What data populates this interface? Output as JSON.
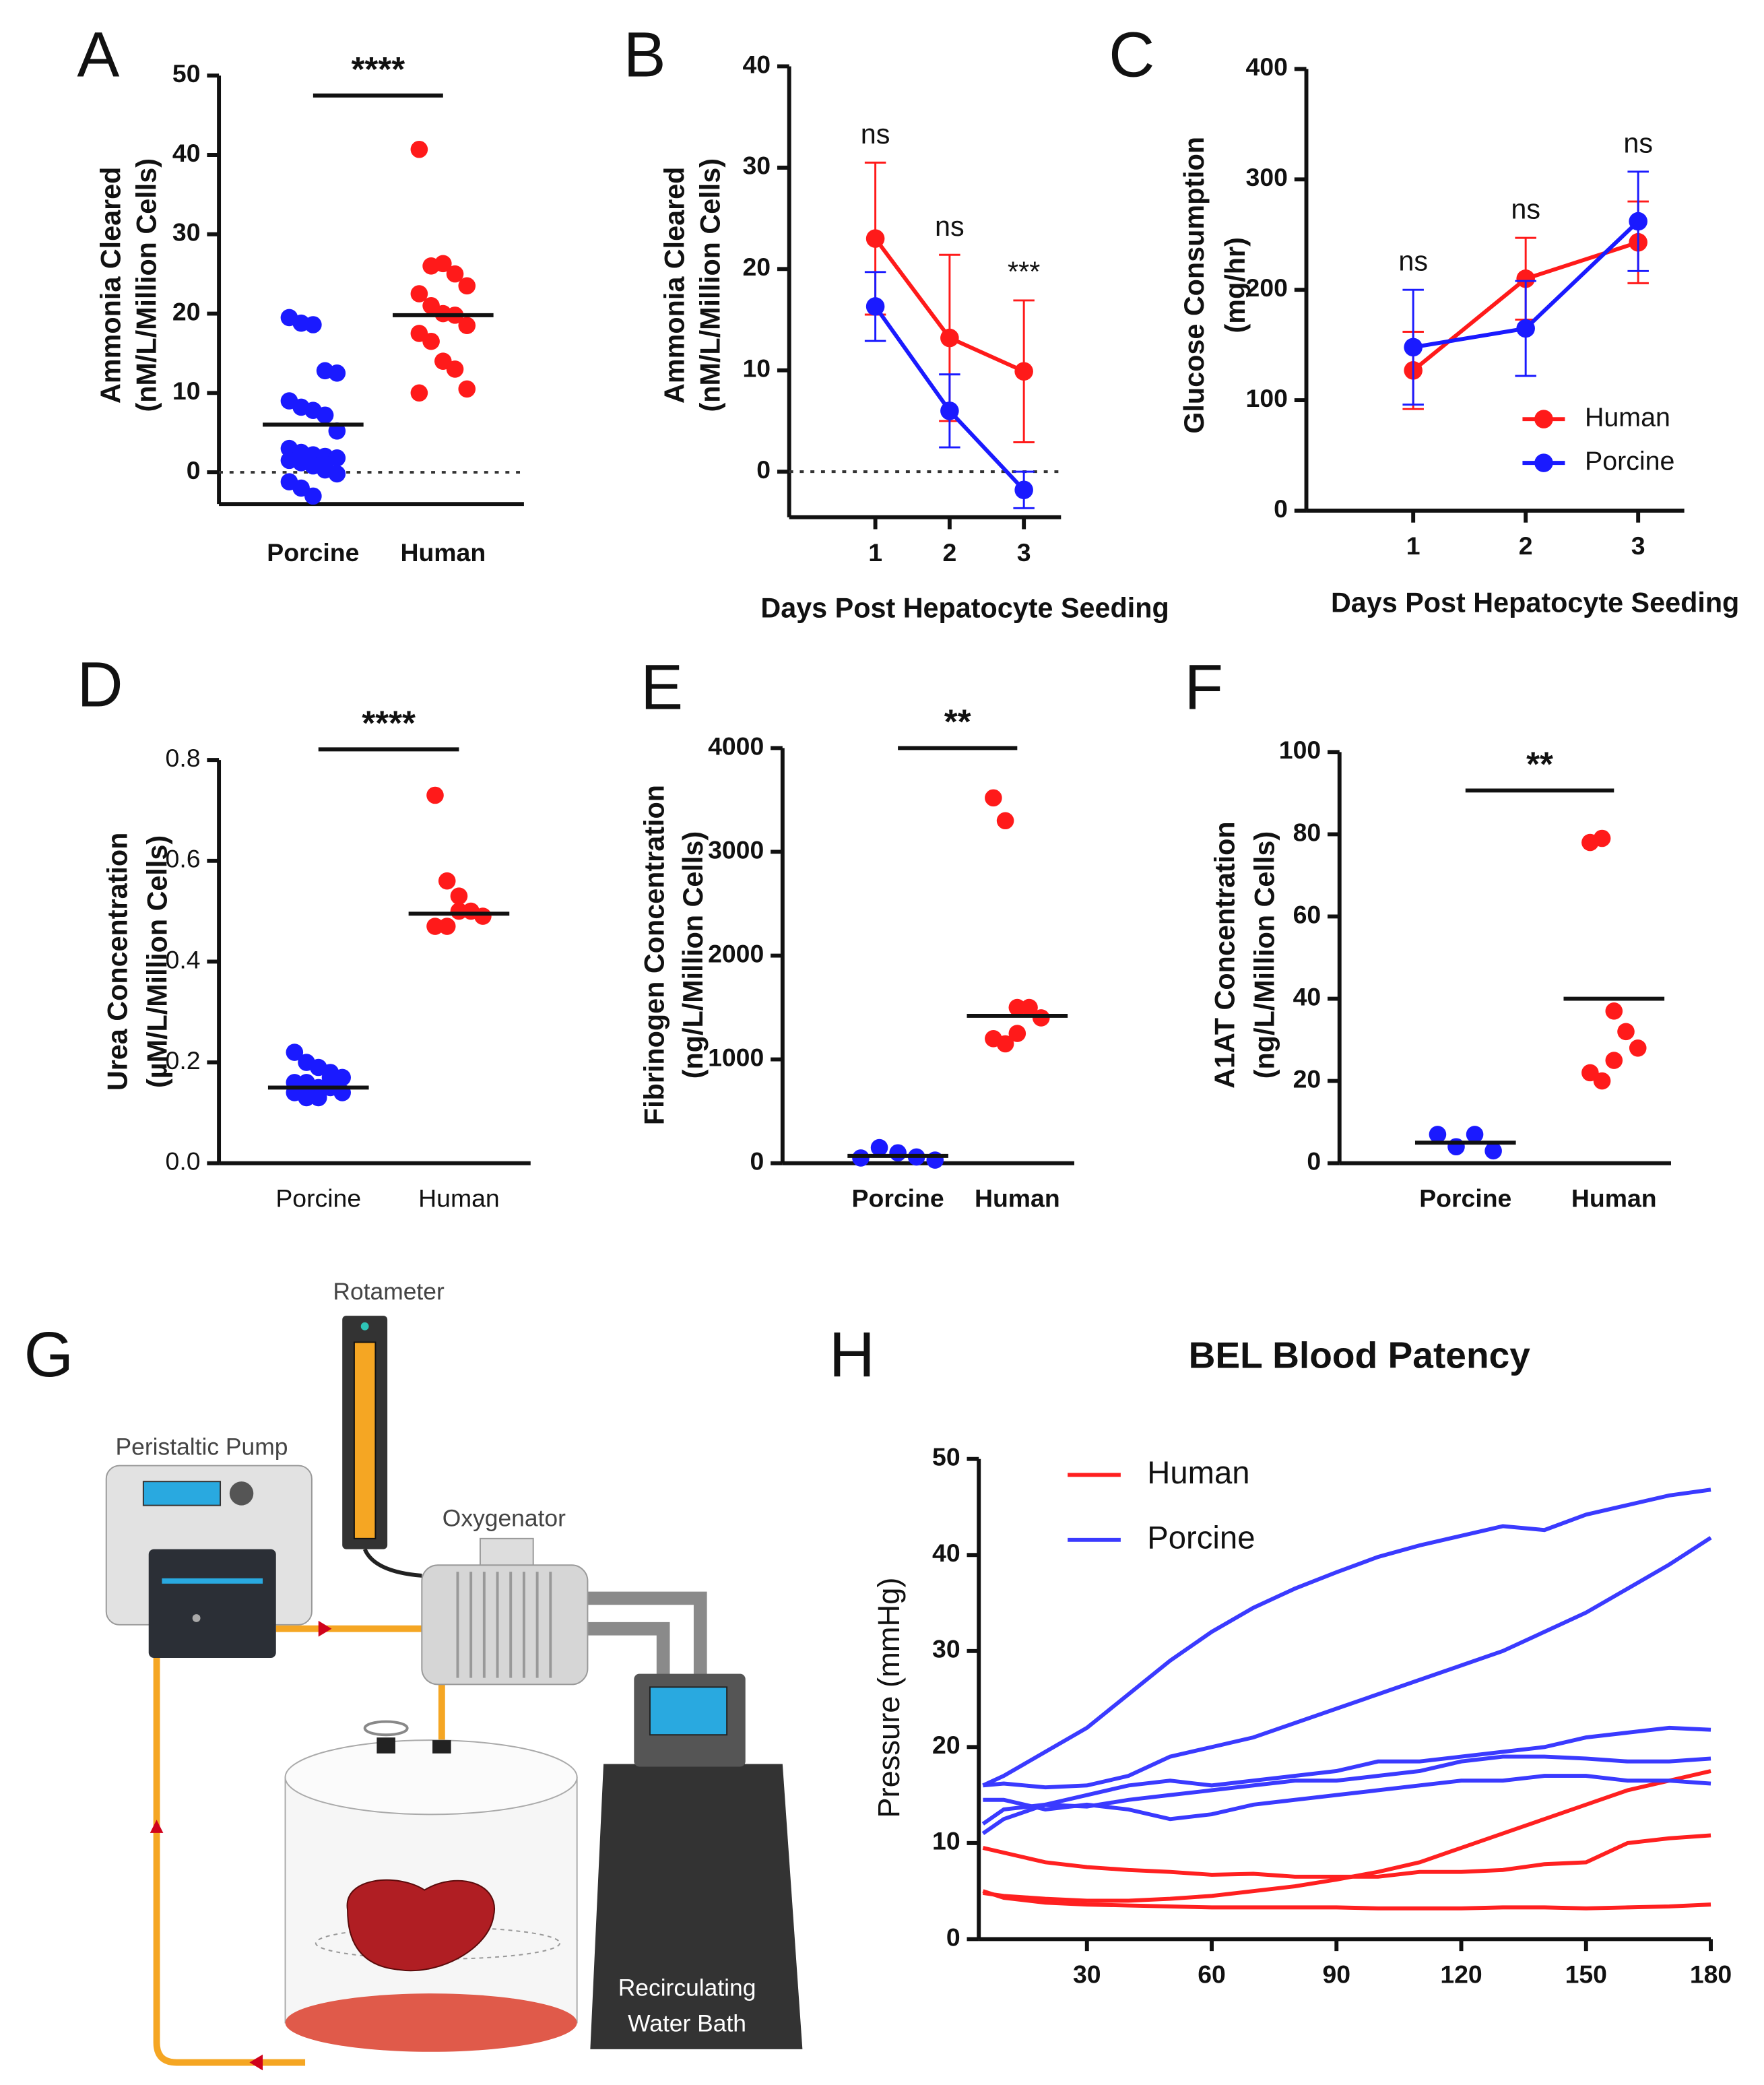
{
  "chart_data": [
    {
      "panel": "A",
      "type": "strip",
      "ylabel": [
        "Ammonia Cleared",
        "(nM/L/Million Cells)"
      ],
      "categories": [
        "Porcine",
        "Human"
      ],
      "groups": [
        {
          "color": "#1a1aff",
          "values": [
            19.5,
            18.8,
            18.6,
            12.8,
            12.5,
            9,
            8.2,
            7.8,
            7.2,
            5.2,
            3,
            2.5,
            2.2,
            2,
            1.8,
            1.5,
            1.2,
            0.8,
            0.3,
            -0.2,
            -1.2,
            -2,
            -3,
            1
          ],
          "mean": 6
        },
        {
          "color": "#ff1a1a",
          "values": [
            40.7,
            26,
            26.3,
            25,
            23.5,
            22.5,
            21,
            20,
            19.8,
            18.5,
            17.5,
            16.5,
            14,
            13,
            10.5,
            10
          ],
          "mean": 19.8
        }
      ],
      "ylim": [
        -4,
        50
      ],
      "yticks": [
        0,
        10,
        20,
        30,
        40,
        50
      ],
      "refline": 0,
      "significance": "****"
    },
    {
      "panel": "B",
      "type": "line",
      "ylabel": [
        "Ammonia Cleared",
        "(nM/L/Million Cells)"
      ],
      "xlabel": "Days Post Hepatocyte Seeding",
      "x": [
        1,
        2,
        3
      ],
      "xlim": [
        -0.16,
        3.5
      ],
      "xticks": [
        1,
        2,
        3
      ],
      "ylim": [
        -4.5,
        40
      ],
      "yticks": [
        0,
        10,
        20,
        30,
        40
      ],
      "refline": 0,
      "series": [
        {
          "color": "#ff1a1a",
          "values": [
            23,
            13.2,
            9.9
          ],
          "errors": [
            7.5,
            8.2,
            7
          ]
        },
        {
          "color": "#1a1aff",
          "values": [
            16.3,
            6,
            -1.8
          ],
          "errors": [
            3.4,
            3.6,
            1.8
          ]
        }
      ],
      "annotations": [
        "ns",
        "ns",
        "***"
      ]
    },
    {
      "panel": "C",
      "type": "line",
      "ylabel": [
        "Glucose Consumption",
        "(mg/hr)"
      ],
      "xlabel": "Days Post Hepatocyte Seeding",
      "x": [
        1,
        2,
        3
      ],
      "xlim": [
        0.05,
        3.41
      ],
      "xticks": [
        1,
        2,
        3
      ],
      "ylim": [
        0,
        400
      ],
      "yticks": [
        0,
        100,
        200,
        300,
        400
      ],
      "series": [
        {
          "name": "Human",
          "color": "#ff1a1a",
          "values": [
            127,
            210,
            243
          ],
          "errors": [
            35,
            37,
            37
          ]
        },
        {
          "name": "Porcine",
          "color": "#1a1aff",
          "values": [
            148,
            165,
            262
          ],
          "errors": [
            52,
            43,
            45
          ]
        }
      ],
      "legend": "lower right",
      "annotations": [
        "ns",
        "ns",
        "ns"
      ]
    },
    {
      "panel": "D",
      "type": "strip",
      "ylabel": [
        "Urea Concentration",
        "(µM/L/Million Cells)"
      ],
      "categories": [
        "Porcine",
        "Human"
      ],
      "groups": [
        {
          "color": "#1a1aff",
          "values": [
            0.22,
            0.2,
            0.19,
            0.18,
            0.17,
            0.16,
            0.16,
            0.15,
            0.15,
            0.14,
            0.14,
            0.13,
            0.13,
            0.17
          ],
          "mean": 0.15
        },
        {
          "color": "#ff1a1a",
          "values": [
            0.73,
            0.56,
            0.53,
            0.5,
            0.49,
            0.47,
            0.47,
            0.5
          ],
          "mean": 0.495
        }
      ],
      "ylim": [
        0,
        0.8
      ],
      "yticks": [
        {
          "value": 0,
          "label": "0.0"
        },
        0.2,
        0.4,
        0.6,
        0.8
      ],
      "significance": "****"
    },
    {
      "panel": "E",
      "type": "strip",
      "ylabel": [
        "Fibrinogen Concentration",
        "(ng/L/Million Cells)"
      ],
      "categories": [
        "Porcine",
        "Human"
      ],
      "groups": [
        {
          "color": "#1a1aff",
          "values": [
            50,
            150,
            100,
            60,
            30
          ],
          "mean": 70
        },
        {
          "color": "#ff1a1a",
          "values": [
            3520,
            3300,
            1500,
            1500,
            1400,
            1200,
            1150,
            1250
          ],
          "mean": 1420
        }
      ],
      "ylim": [
        0,
        4000
      ],
      "yticks": [
        0,
        1000,
        2000,
        3000,
        4000
      ],
      "significance": "**"
    },
    {
      "panel": "F",
      "type": "strip",
      "ylabel": [
        "A1AT Concentration",
        "(ng/L/Million Cells)"
      ],
      "categories": [
        "Porcine",
        "Human"
      ],
      "groups": [
        {
          "color": "#1a1aff",
          "values": [
            7,
            4,
            7,
            3
          ],
          "mean": 5
        },
        {
          "color": "#ff1a1a",
          "values": [
            78,
            79,
            37,
            32,
            28,
            22,
            20,
            25
          ],
          "mean": 40
        }
      ],
      "ylim": [
        0,
        100
      ],
      "yticks": [
        0,
        20,
        40,
        60,
        80,
        100
      ],
      "significance": "**"
    },
    {
      "panel": "H",
      "type": "multiline",
      "title": "BEL Blood Patency",
      "ylabel": "Pressure (mmHg)",
      "x": [
        5,
        10,
        20,
        30,
        40,
        50,
        60,
        70,
        80,
        90,
        100,
        110,
        120,
        130,
        140,
        150,
        160,
        170,
        180
      ],
      "xlim": [
        4,
        180
      ],
      "xticks": [
        30,
        60,
        90,
        120,
        150,
        180
      ],
      "ylim": [
        0,
        50
      ],
      "yticks": [
        0,
        10,
        20,
        30,
        40,
        50
      ],
      "legend": "upper left",
      "series": [
        {
          "name": "Human",
          "color": "#ff2020",
          "lines": [
            [
              9.5,
              9,
              8,
              7.5,
              7.2,
              7,
              6.7,
              6.8,
              6.5,
              6.5,
              6.5,
              7,
              7,
              7.2,
              7.8,
              8,
              10,
              10.5,
              10.8
            ],
            [
              4.8,
              4.5,
              4.2,
              4,
              4,
              4.2,
              4.5,
              5,
              5.5,
              6.2,
              7,
              8,
              9.5,
              11,
              12.5,
              14,
              15.5,
              16.5,
              17.5
            ],
            [
              5,
              4.3,
              3.8,
              3.6,
              3.5,
              3.4,
              3.3,
              3.3,
              3.3,
              3.3,
              3.2,
              3.2,
              3.2,
              3.3,
              3.3,
              3.2,
              3.3,
              3.4,
              3.6
            ]
          ]
        },
        {
          "name": "Porcine",
          "color": "#3a3aff",
          "lines": [
            [
              16,
              17,
              19.5,
              22,
              25.5,
              29,
              32,
              34.5,
              36.5,
              38.2,
              39.8,
              41,
              42,
              43,
              42.6,
              44.2,
              45.2,
              46.2,
              46.8
            ],
            [
              16,
              16.2,
              15.8,
              16,
              17,
              19,
              20,
              21,
              22.5,
              24,
              25.5,
              27,
              28.5,
              30,
              32,
              34,
              36.5,
              39,
              41.8
            ],
            [
              11,
              12.5,
              14,
              15,
              16,
              16.5,
              16,
              16.5,
              17,
              17.5,
              18.5,
              18.5,
              19,
              19.5,
              20,
              21,
              21.5,
              22,
              21.8
            ],
            [
              12,
              13.5,
              14,
              13.8,
              14.5,
              15,
              15.5,
              16,
              16.5,
              16.5,
              17,
              17.5,
              18.5,
              19,
              19,
              18.8,
              18.5,
              18.5,
              18.8
            ],
            [
              14.5,
              14.5,
              13.5,
              14,
              13.5,
              12.5,
              13,
              14,
              14.5,
              15,
              15.5,
              16,
              16.5,
              16.5,
              17,
              17,
              16.5,
              16.5,
              16.2
            ]
          ]
        }
      ]
    }
  ],
  "diagram": {
    "panel": "G",
    "labels": {
      "rotameter": "Rotameter",
      "pump": "Peristaltic Pump",
      "oxygenator": "Oxygenator",
      "bath": [
        "Recirculating",
        "Water Bath"
      ]
    }
  }
}
